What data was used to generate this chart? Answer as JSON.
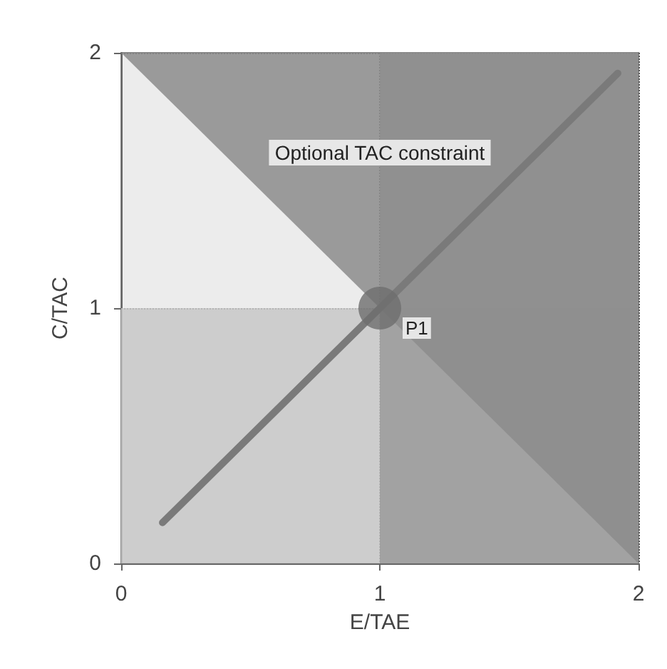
{
  "chart_data": {
    "type": "line",
    "xlabel": "E/TAE",
    "ylabel": "C/TAC",
    "xlim": [
      0,
      2
    ],
    "ylim": [
      0,
      2
    ],
    "xticks": [
      0,
      1,
      2
    ],
    "yticks": [
      0,
      1,
      2
    ],
    "grid": true,
    "series": [
      {
        "type": "area",
        "x": [
          0,
          2
        ],
        "values": [
          2,
          0
        ],
        "color": "#8c8c8c"
      },
      {
        "x": [
          0.16,
          1.92
        ],
        "values": [
          0.16,
          1.92
        ],
        "color": "#7a7a7a"
      },
      {
        "type": "scatter",
        "x": [
          1
        ],
        "values": [
          1
        ],
        "color": "#6e6e6e",
        "marker": "circle"
      }
    ],
    "bands": [
      {
        "axis": "y",
        "from": 0,
        "to": 1,
        "color": "#c8c8c8"
      },
      {
        "axis": "x",
        "from": 1,
        "to": 2,
        "color": "#9a9a9a"
      }
    ],
    "annotations": [
      "Optional TAC constraint",
      {
        "text": "P1",
        "x": 1,
        "y": 1
      }
    ]
  }
}
